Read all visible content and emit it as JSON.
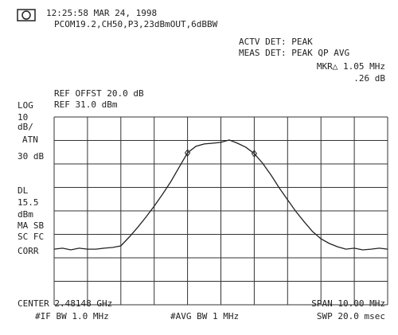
{
  "screen": {
    "timestamp": "12:25:58 MAR 24, 1998",
    "config": "PCOM19.2,CH50,P3,23dBmOUT,6dBBW",
    "actv_det": "ACTV DET: PEAK",
    "meas_det": "MEAS DET: PEAK QP AVG",
    "marker": "MKR△ 1.05 MHz",
    "marker_level": ".26 dB",
    "ref_offset": "REF OFFST 20.0 dB",
    "scale_mode": "LOG",
    "ref_level": "REF 31.0 dBm",
    "left_labels": [
      "10",
      "dB/",
      "ATN",
      "30 dB",
      "DL",
      "15.5",
      "dBm",
      "MA SB",
      "SC FC",
      "CORR"
    ],
    "center": "CENTER 2.48148 GHz",
    "span": "SPAN 10.00 MHz",
    "if_bw": "#IF BW 1.0 MHz",
    "avg_bw": "#AVG BW 1 MHz",
    "sweep": "SWP 20.0 msec"
  },
  "chart_data": {
    "type": "line",
    "color": "#222222",
    "ylim": [
      -49,
      31
    ],
    "values": [
      -25.3,
      -24.9,
      -25.6,
      -24.9,
      -25.3,
      -25.3,
      -24.9,
      -24.6,
      -23.9,
      -20.2,
      -16.1,
      -11.7,
      -7.0,
      -1.9,
      3.5,
      9.6,
      15.7,
      18.5,
      19.5,
      19.8,
      20.2,
      21.2,
      19.8,
      18.1,
      15.4,
      11.3,
      6.3,
      0.8,
      -4.3,
      -9.3,
      -13.7,
      -17.8,
      -20.9,
      -22.9,
      -24.3,
      -25.3,
      -24.9,
      -25.6,
      -25.3,
      -24.9,
      -25.3
    ]
  }
}
